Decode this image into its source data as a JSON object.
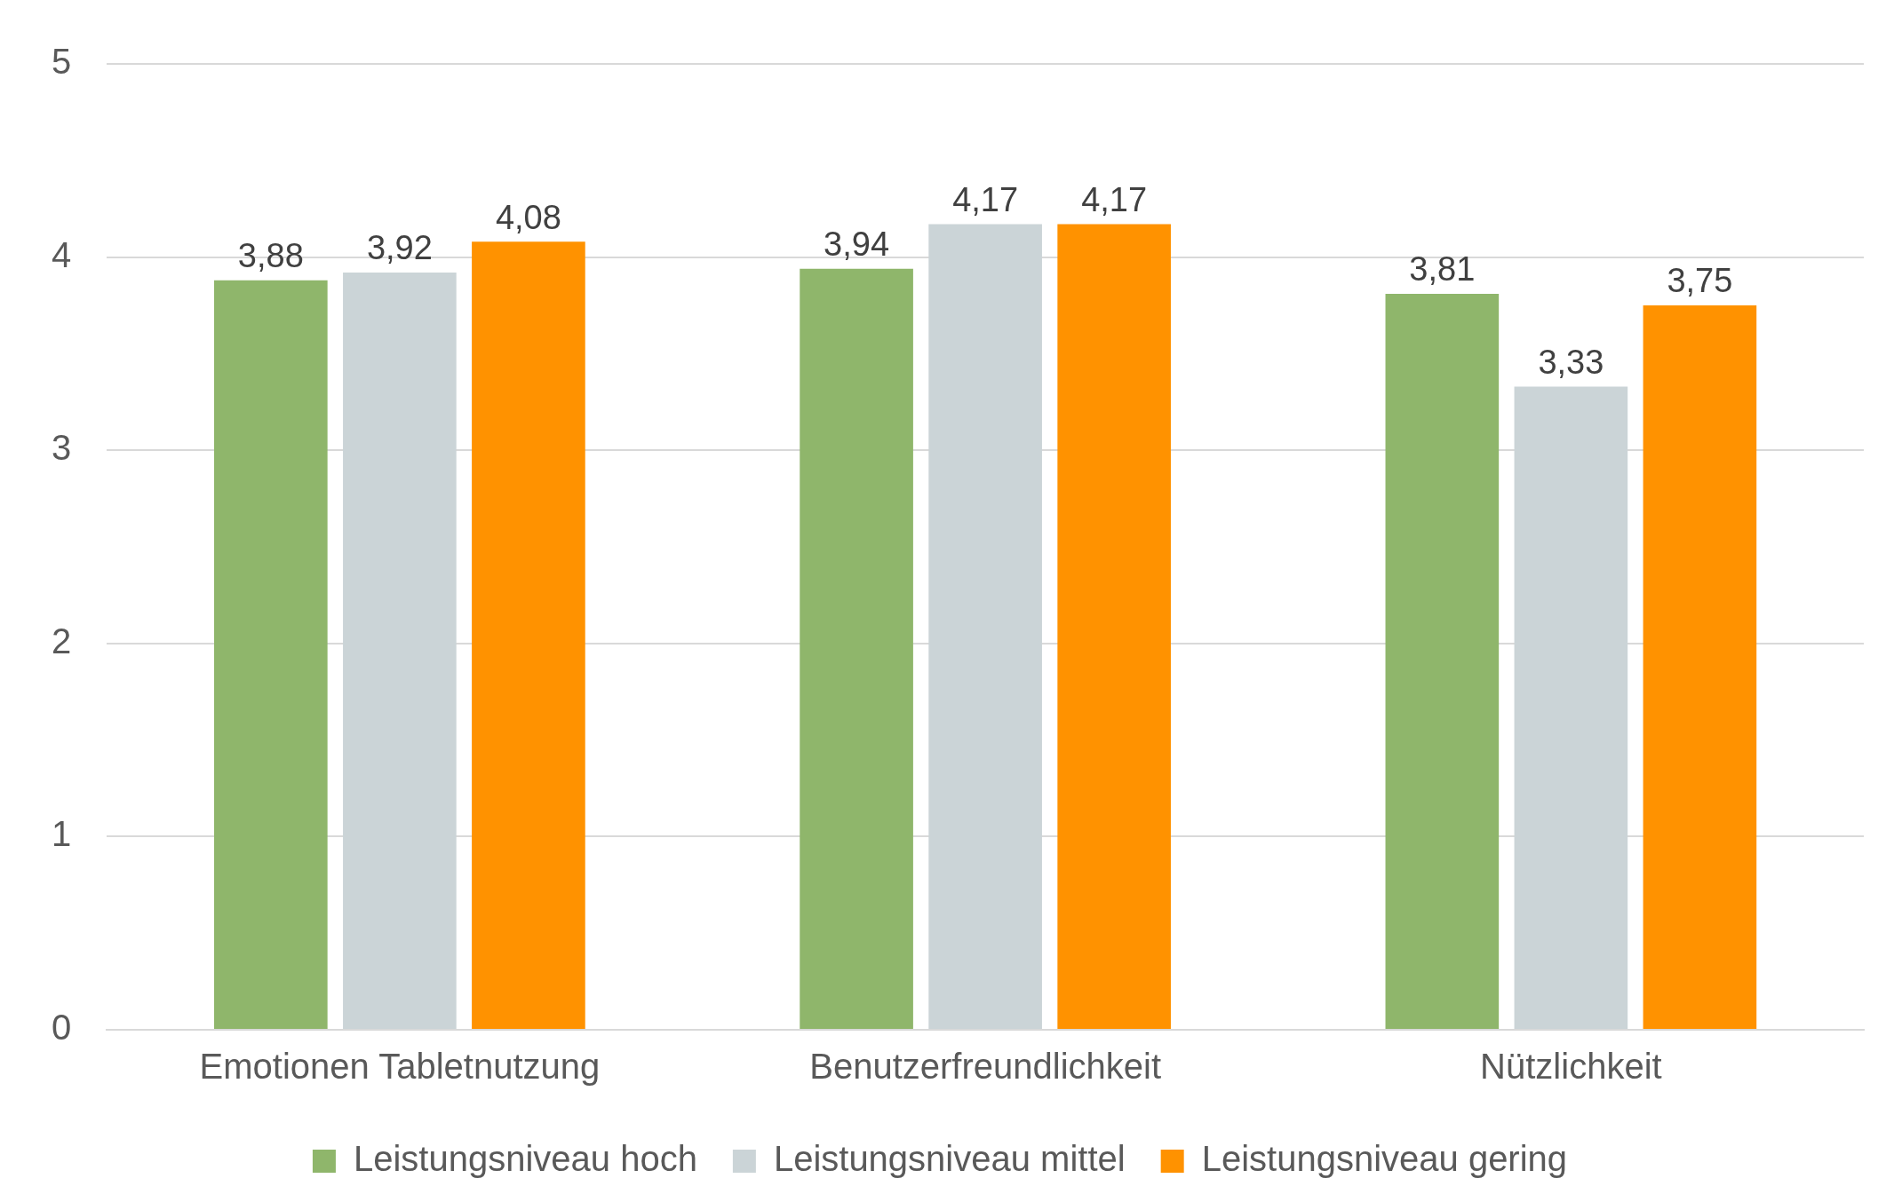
{
  "chart_data": {
    "type": "bar",
    "categories": [
      "Emotionen Tabletnutzung",
      "Benutzerfreundlichkeit",
      "Nützlichkeit"
    ],
    "series": [
      {
        "name": "Leistungsniveau hoch",
        "color": "#8fb66b",
        "values": [
          3.88,
          3.94,
          3.81
        ],
        "value_labels": [
          "3,88",
          "3,94",
          "3,81"
        ]
      },
      {
        "name": "Leistungsniveau mittel",
        "color": "#cbd4d7",
        "values": [
          3.92,
          4.17,
          3.33
        ],
        "value_labels": [
          "3,92",
          "4,17",
          "3,33"
        ]
      },
      {
        "name": "Leistungsniveau gering",
        "color": "#ff9200",
        "values": [
          4.08,
          4.17,
          3.75
        ],
        "value_labels": [
          "4,08",
          "4,17",
          "3,75"
        ]
      }
    ],
    "ylim": [
      0,
      5
    ],
    "yticks": [
      0,
      1,
      2,
      3,
      4,
      5
    ],
    "grid": "y",
    "legend": "bottom"
  }
}
